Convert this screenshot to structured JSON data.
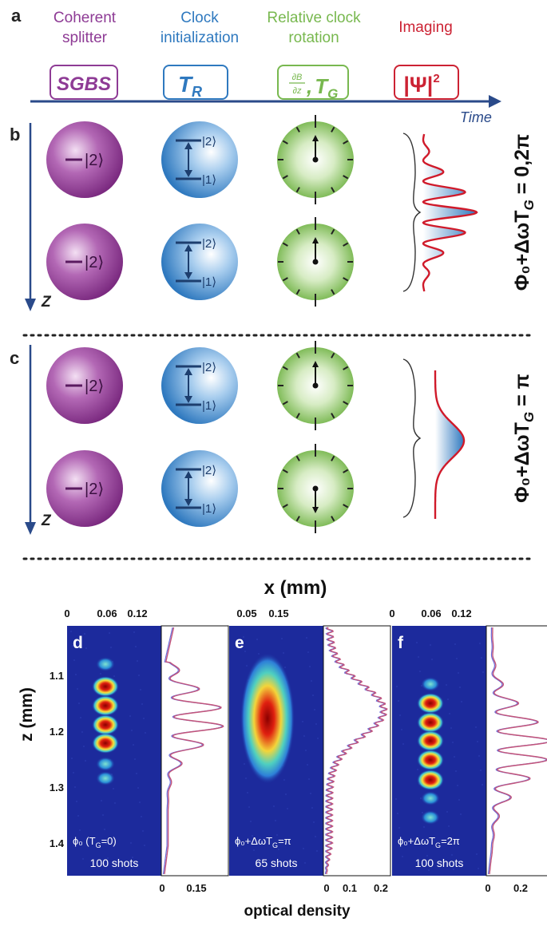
{
  "panel_labels": {
    "a": "a",
    "b": "b",
    "c": "c",
    "d": "d",
    "e": "e",
    "f": "f"
  },
  "stages": [
    {
      "title_line1": "Coherent",
      "title_line2": "splitter",
      "box_label": "SGBS",
      "color": "#8e3b95"
    },
    {
      "title_line1": "Clock",
      "title_line2": "initialization",
      "box_label": "T",
      "box_sub": "R",
      "color": "#2f79bf"
    },
    {
      "title_line1": "Relative clock",
      "title_line2": "rotation",
      "box_label": "T",
      "box_sub": "G",
      "box_frac_top": "∂B",
      "box_frac_bottom": "∂z",
      "color": "#78b84f"
    },
    {
      "title_line1": "Imaging",
      "title_line2": "",
      "box_label": "|Ψ|",
      "box_sup": "2",
      "color": "#cc2233"
    }
  ],
  "time_label": "Time",
  "z_label": "Z",
  "state_label_2": "|2⟩",
  "state_label_1": "|1⟩",
  "phase_b": "Φ₀+ΔωT",
  "phase_b_sub": "G",
  "phase_b_eq": " = 0,2π",
  "phase_c": "Φ₀+ΔωT",
  "phase_c_sub": "G",
  "phase_c_eq": " = π",
  "x_axis_title": "x (mm)",
  "z_axis_title": "z (mm)",
  "od_axis_title": "optical density",
  "panels": [
    {
      "x_ticks": [
        "0",
        "0.06",
        "0.12"
      ],
      "od_ticks": [
        "0",
        "0.15"
      ],
      "caption_line1": "ϕ₀ (T",
      "caption_sub": "G",
      "caption_end": "=0)",
      "caption_line2": "100 shots"
    },
    {
      "x_ticks": [
        "0.05",
        "0.15"
      ],
      "od_ticks": [
        "0",
        "0.1",
        "0.2"
      ],
      "caption_line1": "ϕ₀+ΔωT",
      "caption_sub": "G",
      "caption_end": "=π",
      "caption_line2": "65 shots"
    },
    {
      "x_ticks": [
        "0",
        "0.06",
        "0.12"
      ],
      "od_ticks": [
        "0",
        "0.2"
      ],
      "caption_line1": "ϕ₀+ΔωT",
      "caption_sub": "G",
      "caption_end": "=2π",
      "caption_line2": "100 shots"
    }
  ],
  "z_ticks": [
    "1.1",
    "1.2",
    "1.3",
    "1.4"
  ],
  "colors": {
    "purple": "#8e3b95",
    "blue": "#2f79bf",
    "green": "#78b84f",
    "red": "#cc2233",
    "navy": "#2a4a8a",
    "image_bg": "#1c2a9c"
  }
}
